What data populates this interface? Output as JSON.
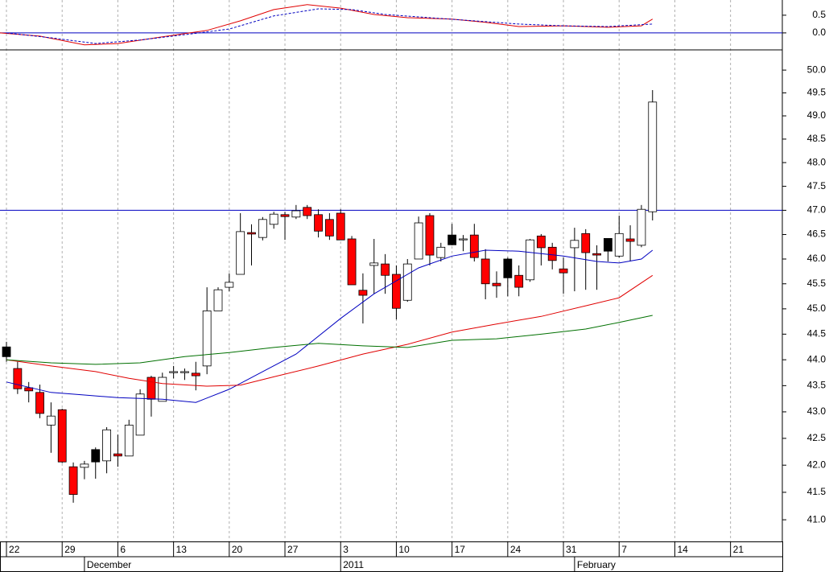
{
  "chart_data": [
    {
      "type": "candlestick",
      "x": [
        0,
        1,
        2,
        3,
        4,
        5,
        6,
        7,
        8,
        9,
        10,
        11,
        12,
        13,
        14,
        15,
        16,
        17,
        18,
        19,
        20,
        21,
        22,
        23,
        24,
        25,
        26,
        27,
        28,
        29,
        30,
        31,
        32,
        33,
        34,
        35,
        36,
        37,
        38,
        39,
        40,
        41,
        42,
        43,
        44,
        45,
        46,
        47,
        48,
        49,
        50,
        51,
        52,
        53,
        54,
        55,
        56,
        57,
        58
      ],
      "open": [
        44.25,
        43.83,
        43.46,
        43.37,
        42.75,
        43.04,
        41.97,
        41.96,
        42.29,
        42.08,
        42.21,
        42.17,
        42.56,
        43.66,
        43.2,
        43.75,
        43.75,
        43.74,
        43.88,
        44.96,
        45.43,
        45.69,
        46.54,
        46.44,
        46.71,
        46.91,
        46.86,
        47.06,
        46.91,
        46.81,
        46.94,
        46.41,
        45.37,
        45.87,
        45.9,
        45.69,
        45.17,
        46.0,
        46.89,
        46.03,
        46.49,
        46.39,
        46.49,
        46.0,
        45.51,
        46.0,
        45.67,
        45.58,
        46.47,
        46.24,
        45.8,
        46.23,
        46.52,
        46.11,
        46.42,
        46.06,
        46.41,
        46.28,
        46.97
      ],
      "high": [
        44.35,
        43.96,
        43.57,
        43.52,
        43.18,
        43.06,
        42.05,
        42.08,
        42.33,
        42.71,
        42.57,
        42.85,
        43.43,
        43.69,
        43.75,
        43.88,
        43.83,
        43.96,
        45.43,
        45.43,
        45.71,
        46.94,
        46.71,
        46.86,
        46.97,
        46.97,
        47.11,
        47.11,
        47.02,
        46.94,
        47.02,
        46.47,
        45.71,
        46.41,
        46.1,
        45.87,
        46.0,
        46.87,
        46.94,
        46.33,
        46.72,
        46.49,
        46.72,
        46.2,
        45.75,
        46.03,
        45.87,
        46.41,
        46.51,
        46.33,
        46.03,
        46.64,
        46.61,
        46.28,
        46.42,
        46.89,
        46.69,
        47.11,
        49.56
      ],
      "low": [
        43.96,
        43.34,
        43.18,
        42.88,
        42.23,
        42.04,
        41.31,
        41.74,
        41.75,
        41.85,
        41.97,
        42.17,
        42.56,
        42.91,
        43.2,
        43.64,
        43.61,
        43.41,
        43.72,
        44.96,
        45.35,
        45.69,
        45.87,
        46.38,
        46.62,
        46.39,
        46.82,
        46.82,
        46.44,
        46.39,
        46.39,
        45.48,
        44.71,
        45.3,
        45.3,
        44.79,
        45.14,
        46.0,
        45.87,
        45.95,
        46.28,
        46.16,
        45.95,
        45.19,
        45.22,
        45.25,
        45.25,
        45.54,
        45.87,
        45.79,
        45.3,
        45.35,
        45.38,
        45.38,
        45.95,
        46.03,
        45.95,
        46.24,
        46.79
      ],
      "close": [
        44.06,
        43.44,
        43.4,
        42.97,
        42.92,
        42.06,
        41.46,
        42.02,
        42.06,
        42.66,
        42.17,
        42.75,
        43.34,
        43.24,
        43.66,
        43.77,
        43.77,
        43.69,
        44.96,
        45.38,
        45.53,
        46.56,
        46.51,
        46.81,
        46.92,
        46.87,
        46.99,
        46.89,
        46.57,
        46.47,
        46.39,
        45.48,
        45.27,
        45.92,
        45.67,
        45.01,
        45.9,
        46.74,
        46.08,
        46.24,
        46.29,
        46.41,
        46.03,
        45.5,
        45.46,
        45.62,
        45.43,
        46.39,
        46.23,
        45.97,
        45.72,
        46.38,
        46.13,
        46.08,
        46.16,
        46.52,
        46.36,
        47.02,
        49.3
      ],
      "candle_colors": [
        "#000000",
        "#ff0000",
        "#ff0000",
        "#ff0000",
        "#ffffff",
        "#ff0000",
        "#ff0000",
        "#ffffff",
        "#000000",
        "#ffffff",
        "#ff0000",
        "#ffffff",
        "#ffffff",
        "#ff0000",
        "#ffffff",
        "#ffffff",
        "#ffffff",
        "#ff0000",
        "#ffffff",
        "#ffffff",
        "#ffffff",
        "#ffffff",
        "#ff0000",
        "#ffffff",
        "#ffffff",
        "#ff0000",
        "#ffffff",
        "#ff0000",
        "#ff0000",
        "#ff0000",
        "#ff0000",
        "#ff0000",
        "#ff0000",
        "#ffffff",
        "#ff0000",
        "#ff0000",
        "#ffffff",
        "#ffffff",
        "#ff0000",
        "#ffffff",
        "#000000",
        "#ffffff",
        "#ff0000",
        "#ff0000",
        "#ff0000",
        "#000000",
        "#ff0000",
        "#ffffff",
        "#ff0000",
        "#ff0000",
        "#ff0000",
        "#ffffff",
        "#ff0000",
        "#ff0000",
        "#000000",
        "#ffffff",
        "#ff0000",
        "#ffffff",
        "#ffffff"
      ],
      "series": [
        {
          "color": "#0000c0",
          "x": [
            0,
            4,
            7,
            10,
            14,
            17,
            20,
            23,
            26,
            30,
            33,
            37,
            40,
            43,
            46,
            50,
            53,
            55,
            57,
            58
          ],
          "values": [
            43.57,
            43.37,
            43.32,
            43.27,
            43.24,
            43.18,
            43.43,
            43.77,
            44.11,
            44.81,
            45.3,
            45.82,
            46.06,
            46.18,
            46.16,
            46.06,
            45.95,
            45.92,
            46.0,
            46.18
          ]
        },
        {
          "color": "#e00000",
          "x": [
            0,
            4,
            8,
            11,
            14,
            18,
            21,
            24,
            28,
            32,
            36,
            40,
            44,
            48,
            52,
            55,
            58
          ],
          "values": [
            44.0,
            43.88,
            43.77,
            43.64,
            43.54,
            43.49,
            43.51,
            43.67,
            43.88,
            44.11,
            44.3,
            44.54,
            44.7,
            44.85,
            45.06,
            45.22,
            45.67
          ]
        },
        {
          "color": "#007000",
          "x": [
            0,
            4,
            8,
            12,
            16,
            20,
            24,
            28,
            32,
            36,
            40,
            44,
            48,
            52,
            55,
            58
          ],
          "values": [
            44.0,
            43.94,
            43.91,
            43.94,
            44.06,
            44.14,
            44.24,
            44.32,
            44.27,
            44.24,
            44.38,
            44.41,
            44.5,
            44.6,
            44.73,
            44.87
          ]
        }
      ],
      "reference_lines": [
        47
      ],
      "reference_color": "#0000c0",
      "log_scale": true,
      "ylim": [
        40.61,
        50.43
      ],
      "yticks": [
        {
          "value": 41,
          "label": "41.0"
        },
        41.5,
        {
          "value": 42,
          "label": "42.0"
        },
        42.5,
        {
          "value": 43,
          "label": "43.0"
        },
        43.5,
        {
          "value": 44,
          "label": "44.0"
        },
        44.5,
        {
          "value": 45,
          "label": "45.0"
        },
        45.5,
        {
          "value": 46,
          "label": "46.0"
        },
        46.5,
        {
          "value": 47,
          "label": "47.0"
        },
        47.5,
        {
          "value": 48,
          "label": "48.0"
        },
        48.5,
        {
          "value": 49,
          "label": "49.0"
        },
        49.5,
        {
          "value": 50,
          "label": "50.0"
        }
      ],
      "xlim": [
        -0.58,
        69.65
      ],
      "xticks": [
        {
          "value": 0,
          "label": "22"
        },
        {
          "value": 5,
          "label": "29"
        },
        {
          "value": 10,
          "label": "6"
        },
        {
          "value": 15,
          "label": "13"
        },
        {
          "value": 20,
          "label": "20"
        },
        {
          "value": 25,
          "label": "27"
        },
        {
          "value": 30,
          "label": "3"
        },
        {
          "value": 35,
          "label": "10"
        },
        {
          "value": 40,
          "label": "17"
        },
        {
          "value": 45,
          "label": "24"
        },
        {
          "value": 50,
          "label": "31"
        },
        {
          "value": 55,
          "label": "7"
        },
        {
          "value": 60,
          "label": "14"
        },
        {
          "value": 65,
          "label": "21"
        }
      ],
      "month_ticks": [
        {
          "value": 7,
          "label": "December"
        },
        {
          "value": 30,
          "label": "2011"
        },
        {
          "value": 51,
          "label": "February"
        }
      ],
      "grid": true
    },
    {
      "type": "line",
      "series": [
        {
          "color": "#e00000",
          "dash": false,
          "x": [
            -0.58,
            3,
            7,
            10,
            14,
            18,
            21,
            24,
            27,
            30,
            33,
            36,
            40,
            43,
            46,
            50,
            54,
            57,
            58
          ],
          "values": [
            0,
            -0.09,
            -0.34,
            -0.3,
            -0.11,
            0.07,
            0.34,
            0.66,
            0.8,
            0.7,
            0.52,
            0.43,
            0.39,
            0.3,
            0.18,
            0.2,
            0.16,
            0.2,
            0.39
          ]
        },
        {
          "color": "#0000c0",
          "dash": true,
          "x": [
            0,
            4,
            8,
            12,
            16,
            20,
            24,
            28,
            31,
            34,
            38,
            42,
            46,
            50,
            54,
            58
          ],
          "values": [
            0,
            -0.14,
            -0.3,
            -0.2,
            -0.05,
            0.11,
            0.48,
            0.68,
            0.66,
            0.52,
            0.43,
            0.34,
            0.25,
            0.2,
            0.18,
            0.25
          ]
        }
      ],
      "reference_lines": [
        0
      ],
      "reference_color": "#0000c0",
      "ylim": [
        -0.48,
        0.93
      ],
      "yticks": [
        {
          "value": 0,
          "label": "0.0"
        },
        0.5
      ],
      "xlim": [
        -0.58,
        69.65
      ]
    }
  ]
}
